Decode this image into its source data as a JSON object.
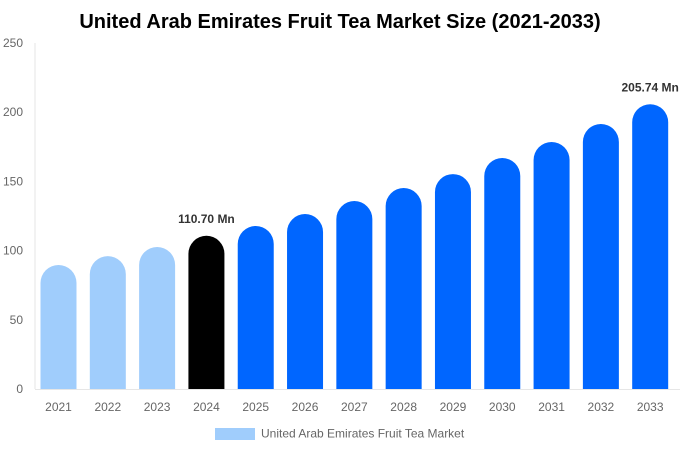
{
  "chart_data": {
    "type": "bar",
    "title": "United Arab Emirates Fruit Tea Market Size (2021-2033)",
    "xlabel": "",
    "ylabel": "",
    "ylim": [
      0,
      250
    ],
    "yticks": [
      0,
      50,
      100,
      150,
      200,
      250
    ],
    "grid": false,
    "legend_placement": "bottom",
    "categories": [
      "2021",
      "2022",
      "2023",
      "2024",
      "2025",
      "2026",
      "2027",
      "2028",
      "2029",
      "2030",
      "2031",
      "2032",
      "2033"
    ],
    "series": [
      {
        "name": "United Arab Emirates Fruit Tea Market",
        "values": [
          89.6,
          96.0,
          102.6,
          110.7,
          117.8,
          126.4,
          135.8,
          145.2,
          155.3,
          166.9,
          178.5,
          191.5,
          205.74
        ]
      }
    ],
    "data_labels": [
      {
        "category": "2024",
        "text": "110.70 Mn"
      },
      {
        "category": "2033",
        "text": "205.74 Mn"
      }
    ],
    "colors": {
      "historical": "#a0cdfc",
      "current": "#000000",
      "forecast": "#0066ff",
      "legend": "#a0cdfc"
    }
  }
}
